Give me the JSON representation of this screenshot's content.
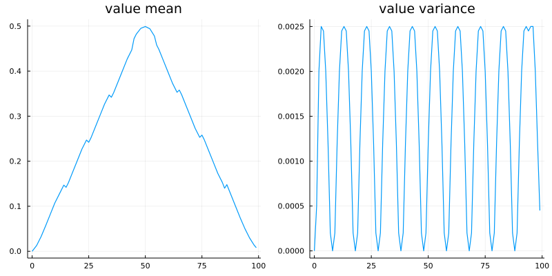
{
  "chart_data": [
    {
      "type": "line",
      "title": "value mean",
      "xlabel": "",
      "ylabel": "",
      "xlim": [
        -2,
        101
      ],
      "ylim": [
        -0.015,
        0.515
      ],
      "xticks": [
        0,
        25,
        50,
        75,
        100
      ],
      "xtick_labels": [
        "0",
        "25",
        "50",
        "75",
        "100"
      ],
      "yticks": [
        0.0,
        0.1,
        0.2,
        0.3,
        0.4,
        0.5
      ],
      "ytick_labels": [
        "0.0",
        "0.1",
        "0.2",
        "0.3",
        "0.4",
        "0.5"
      ],
      "grid": true,
      "legend": "none",
      "series": [
        {
          "color": "#009af9",
          "x": [
            0,
            2,
            4,
            6,
            8,
            10,
            12,
            14,
            15,
            16,
            18,
            20,
            22,
            24,
            25,
            26,
            28,
            30,
            32,
            34,
            35,
            36,
            38,
            40,
            42,
            44,
            45,
            46,
            48,
            50,
            52,
            54,
            55,
            56,
            58,
            60,
            62,
            64,
            65,
            66,
            68,
            70,
            72,
            74,
            75,
            76,
            78,
            80,
            82,
            84,
            85,
            86,
            88,
            90,
            92,
            94,
            96,
            98,
            99
          ],
          "y": [
            0.0,
            0.013,
            0.033,
            0.057,
            0.082,
            0.107,
            0.127,
            0.147,
            0.142,
            0.152,
            0.177,
            0.202,
            0.227,
            0.247,
            0.242,
            0.252,
            0.277,
            0.302,
            0.327,
            0.347,
            0.342,
            0.352,
            0.377,
            0.402,
            0.427,
            0.447,
            0.472,
            0.482,
            0.495,
            0.499,
            0.494,
            0.478,
            0.458,
            0.448,
            0.423,
            0.398,
            0.373,
            0.353,
            0.358,
            0.348,
            0.323,
            0.298,
            0.273,
            0.253,
            0.258,
            0.248,
            0.223,
            0.198,
            0.173,
            0.153,
            0.14,
            0.148,
            0.123,
            0.098,
            0.073,
            0.05,
            0.03,
            0.014,
            0.008
          ]
        }
      ]
    },
    {
      "type": "line",
      "title": "value variance",
      "xlabel": "",
      "ylabel": "",
      "xlim": [
        -2,
        101
      ],
      "ylim": [
        -8e-05,
        0.00258
      ],
      "xticks": [
        0,
        25,
        50,
        75,
        100
      ],
      "xtick_labels": [
        "0",
        "25",
        "50",
        "75",
        "100"
      ],
      "yticks": [
        0.0,
        0.0005,
        0.001,
        0.0015,
        0.002,
        0.0025
      ],
      "ytick_labels": [
        "0.0000",
        "0.0005",
        "0.0010",
        "0.0015",
        "0.0020",
        "0.0025"
      ],
      "grid": true,
      "legend": "none",
      "series": [
        {
          "color": "#009af9",
          "x": [
            0,
            1,
            2,
            3,
            4,
            5,
            6,
            7,
            8,
            9,
            10,
            11,
            12,
            13,
            14,
            15,
            16,
            17,
            18,
            19,
            20,
            21,
            22,
            23,
            24,
            25,
            26,
            27,
            28,
            29,
            30,
            31,
            32,
            33,
            34,
            35,
            36,
            37,
            38,
            39,
            40,
            41,
            42,
            43,
            44,
            45,
            46,
            47,
            48,
            49,
            50,
            51,
            52,
            53,
            54,
            55,
            56,
            57,
            58,
            59,
            60,
            61,
            62,
            63,
            64,
            65,
            66,
            67,
            68,
            69,
            70,
            71,
            72,
            73,
            74,
            75,
            76,
            77,
            78,
            79,
            80,
            81,
            82,
            83,
            84,
            85,
            86,
            87,
            88,
            89,
            90,
            91,
            92,
            93,
            94,
            95,
            96,
            97,
            98,
            99
          ],
          "y": [
            0.0,
            0.0005,
            0.002,
            0.0025,
            0.00245,
            0.002,
            0.0012,
            0.0002,
            0.0,
            0.0002,
            0.0012,
            0.002,
            0.00245,
            0.0025,
            0.00245,
            0.002,
            0.0012,
            0.0002,
            0.0,
            0.0002,
            0.0012,
            0.002,
            0.00245,
            0.0025,
            0.00245,
            0.002,
            0.0012,
            0.0002,
            0.0,
            0.0002,
            0.0012,
            0.002,
            0.00245,
            0.0025,
            0.00245,
            0.002,
            0.0012,
            0.0002,
            0.0,
            0.0002,
            0.0012,
            0.002,
            0.00245,
            0.0025,
            0.00245,
            0.002,
            0.0012,
            0.0002,
            0.0,
            0.0002,
            0.0012,
            0.002,
            0.00245,
            0.0025,
            0.00245,
            0.002,
            0.0012,
            0.0002,
            0.0,
            0.0002,
            0.0012,
            0.002,
            0.00245,
            0.0025,
            0.00245,
            0.002,
            0.0012,
            0.0002,
            0.0,
            0.0002,
            0.0012,
            0.002,
            0.00245,
            0.0025,
            0.00245,
            0.002,
            0.0012,
            0.0002,
            0.0,
            0.0002,
            0.0012,
            0.002,
            0.00245,
            0.0025,
            0.00245,
            0.002,
            0.0012,
            0.0002,
            0.0,
            0.0002,
            0.0012,
            0.002,
            0.00245,
            0.0025,
            0.00245,
            0.0025,
            0.0025,
            0.002,
            0.0012,
            0.00045
          ]
        }
      ]
    }
  ]
}
